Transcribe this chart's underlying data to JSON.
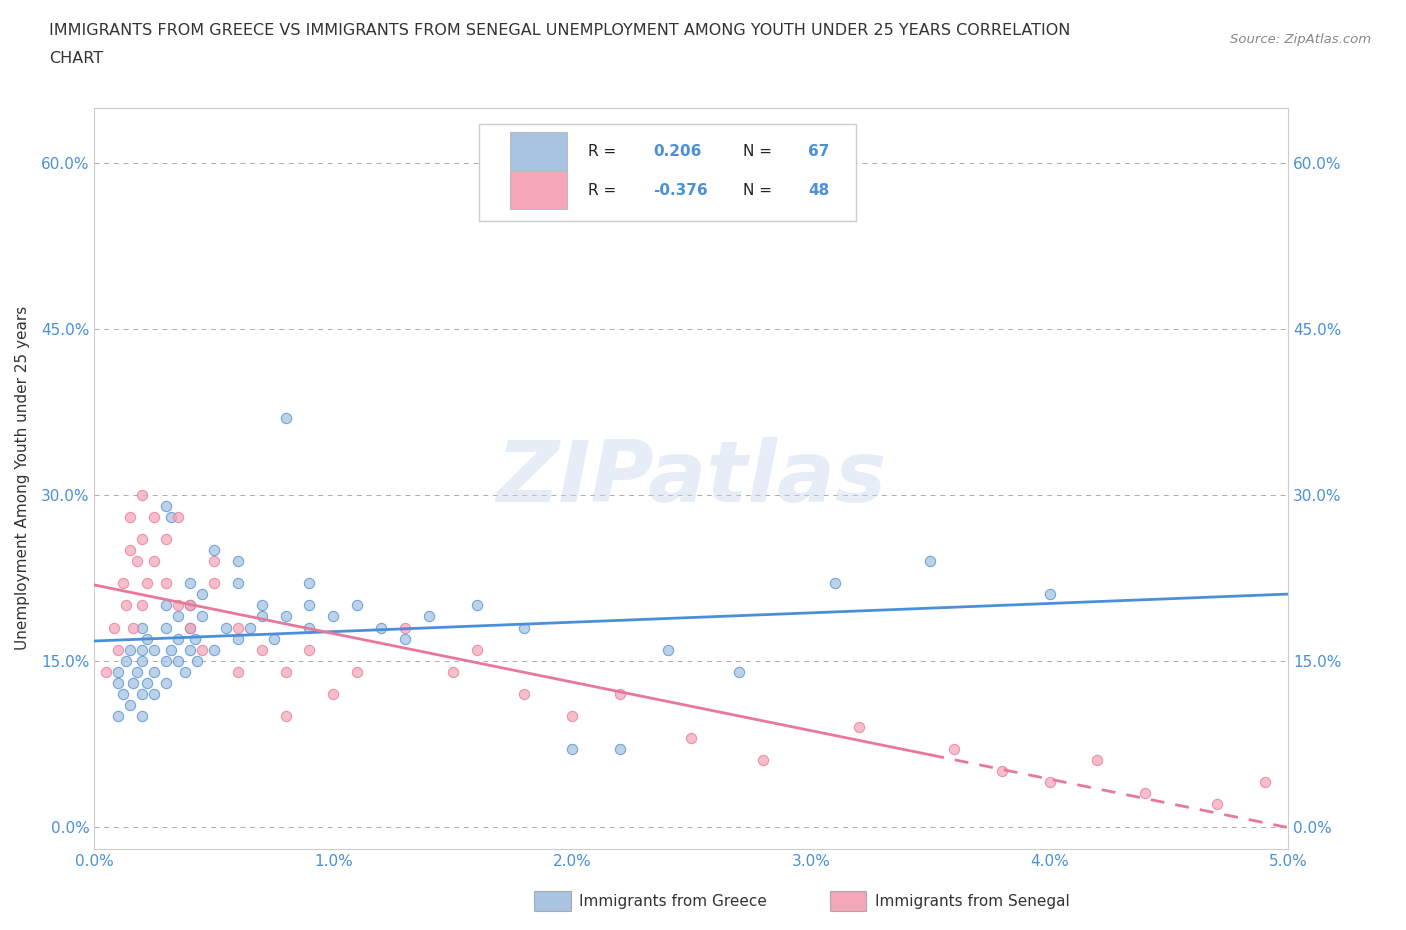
{
  "title_line1": "IMMIGRANTS FROM GREECE VS IMMIGRANTS FROM SENEGAL UNEMPLOYMENT AMONG YOUTH UNDER 25 YEARS CORRELATION",
  "title_line2": "CHART",
  "source": "Source: ZipAtlas.com",
  "ylabel": "Unemployment Among Youth under 25 years",
  "xlim": [
    0.0,
    0.05
  ],
  "ylim": [
    -0.02,
    0.65
  ],
  "yticks": [
    0.0,
    0.15,
    0.3,
    0.45,
    0.6
  ],
  "ytick_labels": [
    "0.0%",
    "15.0%",
    "30.0%",
    "45.0%",
    "60.0%"
  ],
  "xticks": [
    0.0,
    0.01,
    0.02,
    0.03,
    0.04,
    0.05
  ],
  "xtick_labels": [
    "0.0%",
    "1.0%",
    "2.0%",
    "3.0%",
    "4.0%",
    "5.0%"
  ],
  "greece_color": "#a8c4e0",
  "senegal_color": "#f4a7b9",
  "greece_line_color": "#4a90d9",
  "senegal_line_color": "#e8789a",
  "greece_R": 0.206,
  "greece_N": 67,
  "senegal_R": -0.376,
  "senegal_N": 48,
  "watermark": "ZIPatlas",
  "background_color": "#ffffff",
  "grid_color": "#aaaaaa",
  "axis_color": "#cccccc",
  "tick_label_color": "#4a90d9",
  "title_color": "#333333",
  "greece_scatter_x": [
    0.001,
    0.001,
    0.001,
    0.0012,
    0.0013,
    0.0015,
    0.0015,
    0.0016,
    0.0018,
    0.002,
    0.002,
    0.002,
    0.002,
    0.002,
    0.0022,
    0.0022,
    0.0025,
    0.0025,
    0.0025,
    0.003,
    0.003,
    0.003,
    0.003,
    0.003,
    0.0032,
    0.0032,
    0.0035,
    0.0035,
    0.0035,
    0.0038,
    0.004,
    0.004,
    0.004,
    0.004,
    0.0042,
    0.0043,
    0.0045,
    0.0045,
    0.005,
    0.005,
    0.0055,
    0.006,
    0.006,
    0.006,
    0.0065,
    0.007,
    0.007,
    0.0075,
    0.008,
    0.008,
    0.009,
    0.009,
    0.009,
    0.01,
    0.011,
    0.012,
    0.013,
    0.014,
    0.016,
    0.018,
    0.02,
    0.022,
    0.024,
    0.027,
    0.031,
    0.035,
    0.04
  ],
  "greece_scatter_y": [
    0.1,
    0.13,
    0.14,
    0.12,
    0.15,
    0.11,
    0.16,
    0.13,
    0.14,
    0.12,
    0.15,
    0.16,
    0.18,
    0.1,
    0.13,
    0.17,
    0.14,
    0.16,
    0.12,
    0.15,
    0.18,
    0.2,
    0.13,
    0.29,
    0.16,
    0.28,
    0.17,
    0.19,
    0.15,
    0.14,
    0.18,
    0.2,
    0.16,
    0.22,
    0.17,
    0.15,
    0.19,
    0.21,
    0.16,
    0.25,
    0.18,
    0.22,
    0.17,
    0.24,
    0.18,
    0.19,
    0.2,
    0.17,
    0.37,
    0.19,
    0.2,
    0.18,
    0.22,
    0.19,
    0.2,
    0.18,
    0.17,
    0.19,
    0.2,
    0.18,
    0.07,
    0.07,
    0.16,
    0.14,
    0.22,
    0.24,
    0.21
  ],
  "senegal_scatter_x": [
    0.0005,
    0.0008,
    0.001,
    0.0012,
    0.0013,
    0.0015,
    0.0015,
    0.0016,
    0.0018,
    0.002,
    0.002,
    0.002,
    0.0022,
    0.0025,
    0.0025,
    0.003,
    0.003,
    0.0035,
    0.0035,
    0.004,
    0.004,
    0.0045,
    0.005,
    0.005,
    0.006,
    0.006,
    0.007,
    0.008,
    0.008,
    0.009,
    0.01,
    0.011,
    0.013,
    0.015,
    0.016,
    0.018,
    0.02,
    0.022,
    0.025,
    0.028,
    0.032,
    0.036,
    0.038,
    0.04,
    0.042,
    0.044,
    0.047,
    0.049
  ],
  "senegal_scatter_y": [
    0.14,
    0.18,
    0.16,
    0.22,
    0.2,
    0.25,
    0.28,
    0.18,
    0.24,
    0.2,
    0.3,
    0.26,
    0.22,
    0.28,
    0.24,
    0.26,
    0.22,
    0.2,
    0.28,
    0.18,
    0.2,
    0.16,
    0.22,
    0.24,
    0.14,
    0.18,
    0.16,
    0.14,
    0.1,
    0.16,
    0.12,
    0.14,
    0.18,
    0.14,
    0.16,
    0.12,
    0.1,
    0.12,
    0.08,
    0.06,
    0.09,
    0.07,
    0.05,
    0.04,
    0.06,
    0.03,
    0.02,
    0.04
  ]
}
